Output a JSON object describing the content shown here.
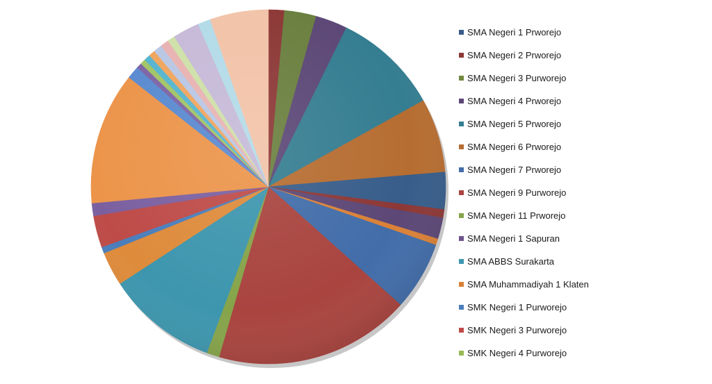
{
  "chart_data": {
    "type": "pie",
    "title": "",
    "legend_position": "right",
    "legend": [
      {
        "label": "SMA Negeri 1 Prworejo",
        "color": "#385d8a"
      },
      {
        "label": "SMA Negeri 2 Prworejo",
        "color": "#8c3836"
      },
      {
        "label": "SMA Negeri 3 Purworejo",
        "color": "#71893f"
      },
      {
        "label": "SMA Negeri 4 Prworejo",
        "color": "#5c4776"
      },
      {
        "label": "SMA Negeri 5 Prworejo",
        "color": "#357d91"
      },
      {
        "label": "SMA Negeri 6 Prworejo",
        "color": "#b66d31"
      },
      {
        "label": "SMA Negeri 7 Prworejo",
        "color": "#426da9"
      },
      {
        "label": "SMA Negeri 9 Purworejo",
        "color": "#a9443f"
      },
      {
        "label": "SMA Negeri 11 Prworejo",
        "color": "#86a44a"
      },
      {
        "label": "SMA Negeri 1 Sapuran",
        "color": "#6e548d"
      },
      {
        "label": "SMA ABBS Surakarta",
        "color": "#3d96ae"
      },
      {
        "label": "SMA Muhammadiyah 1 Klaten",
        "color": "#da8137"
      },
      {
        "label": "SMK Negeri 1 Purworejo",
        "color": "#4a7ebb"
      },
      {
        "label": "SMK Negeri 3 Purworejo",
        "color": "#be4b48"
      },
      {
        "label": "SMK Negeri 4 Purworejo",
        "color": "#98b954"
      }
    ],
    "slices": [
      {
        "value": 1.5,
        "color": "#8c3836"
      },
      {
        "value": 3.0,
        "color": "#6a7f3f"
      },
      {
        "value": 3.0,
        "color": "#5c4776"
      },
      {
        "value": 10.0,
        "color": "#357d91"
      },
      {
        "value": 7.0,
        "color": "#b66d31"
      },
      {
        "value": 3.5,
        "color": "#385d8a"
      },
      {
        "value": 0.8,
        "color": "#8c3836"
      },
      {
        "value": 2.0,
        "color": "#5c4776"
      },
      {
        "value": 0.6,
        "color": "#da8137"
      },
      {
        "value": 6.5,
        "color": "#426da9"
      },
      {
        "value": 18.5,
        "color": "#a9443f"
      },
      {
        "value": 1.2,
        "color": "#86a44a"
      },
      {
        "value": 10.5,
        "color": "#3d96ae"
      },
      {
        "value": 3.2,
        "color": "#de8b3b"
      },
      {
        "value": 0.6,
        "color": "#4a7ebb"
      },
      {
        "value": 3.0,
        "color": "#be4b48"
      },
      {
        "value": 1.2,
        "color": "#7b60a0"
      },
      {
        "value": 12.5,
        "color": "#ec944a"
      },
      {
        "value": 1.2,
        "color": "#5a8ad0"
      },
      {
        "value": 0.5,
        "color": "#7e64a6"
      },
      {
        "value": 0.5,
        "color": "#a3c466"
      },
      {
        "value": 0.6,
        "color": "#56b5cf"
      },
      {
        "value": 0.6,
        "color": "#f0a55e"
      },
      {
        "value": 0.8,
        "color": "#b9c7e4"
      },
      {
        "value": 0.8,
        "color": "#e8b3b2"
      },
      {
        "value": 0.7,
        "color": "#cfe0a8"
      },
      {
        "value": 2.5,
        "color": "#c6bad8"
      },
      {
        "value": 1.2,
        "color": "#b3dbe8"
      },
      {
        "value": 5.5,
        "color": "#f2c3a8"
      }
    ]
  }
}
